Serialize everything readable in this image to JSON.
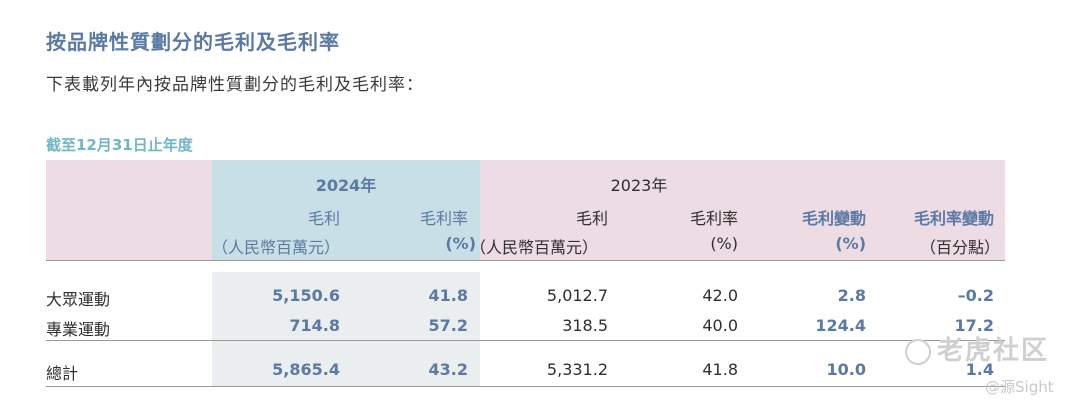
{
  "title": "按品牌性質劃分的毛利及毛利率",
  "subtitle": "下表載列年內按品牌性質劃分的毛利及毛利率：",
  "period": "截至12月31日止年度",
  "header": {
    "year_2024": "2024年",
    "year_2023": "2023年",
    "cols": [
      {
        "line1": "毛利",
        "line2": "（人民幣百萬元）"
      },
      {
        "line1": "毛利率",
        "line2": "(%)"
      },
      {
        "line1": "毛利",
        "line2": "（人民幣百萬元）"
      },
      {
        "line1": "毛利率",
        "line2": "(%)"
      },
      {
        "line1": "毛利變動",
        "line2": "(%)"
      },
      {
        "line1": "毛利率變動",
        "line2": "（百分點）"
      }
    ]
  },
  "rows": [
    {
      "label": "大眾運動",
      "values": [
        "5,150.6",
        "41.8",
        "5,012.7",
        "42.0",
        "2.8",
        "–0.2"
      ]
    },
    {
      "label": "專業運動",
      "values": [
        "714.8",
        "57.2",
        "318.5",
        "40.0",
        "124.4",
        "17.2"
      ]
    },
    {
      "label": "總計",
      "values": [
        "5,865.4",
        "43.2",
        "5,331.2",
        "41.8",
        "10.0",
        "1.4"
      ]
    }
  ],
  "watermark": {
    "brand": "老虎社区",
    "source": "@源Sight"
  },
  "colors": {
    "title": "#5a7aa3",
    "period": "#6fb7c6",
    "header_pink": "#eedce5",
    "header_blue": "#c9dfe6",
    "body_gray": "#ebeeee"
  }
}
